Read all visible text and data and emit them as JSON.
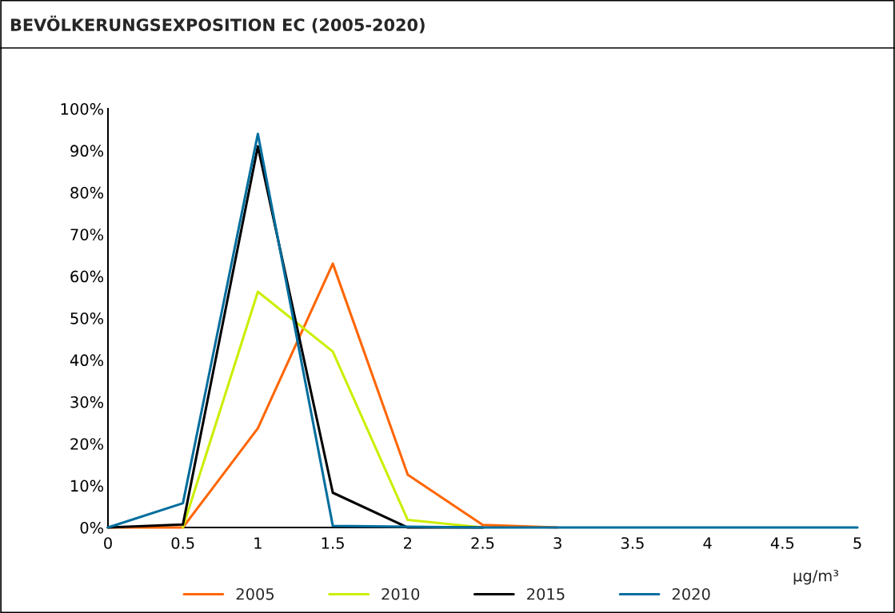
{
  "chart_data": {
    "type": "line",
    "title": "BEVÖLKERUNGSEXPOSITION EC (2005-2020)",
    "xlabel": "µg/m³",
    "x": [
      0,
      0.5,
      1,
      1.5,
      2,
      2.5,
      3,
      3.5,
      4,
      4.5,
      5
    ],
    "series": [
      {
        "name": "2005",
        "color": "#ff6600",
        "values": [
          0,
          0,
          23.7,
          63,
          12.6,
          0.6,
          0,
          null,
          null,
          null,
          null
        ]
      },
      {
        "name": "2010",
        "color": "#ccee00",
        "values": [
          null,
          0,
          56.3,
          42,
          1.8,
          0,
          null,
          null,
          null,
          null,
          null
        ]
      },
      {
        "name": "2015",
        "color": "#000000",
        "values": [
          0,
          0.7,
          91,
          8.3,
          0,
          0,
          null,
          null,
          null,
          null,
          null
        ]
      },
      {
        "name": "2020",
        "color": "#006e9e",
        "values": [
          0,
          5.8,
          94,
          0.4,
          0.2,
          0,
          0,
          0,
          0,
          0,
          0
        ]
      }
    ],
    "xlim": [
      0,
      5
    ],
    "xticks": [
      0,
      0.5,
      1,
      1.5,
      2,
      2.5,
      3,
      3.5,
      4,
      4.5,
      5
    ],
    "ylim": [
      0,
      100
    ],
    "yticks": [
      {
        "value": 0,
        "label": "0%"
      },
      {
        "value": 10,
        "label": "10%"
      },
      {
        "value": 20,
        "label": "20%"
      },
      {
        "value": 30,
        "label": "30%"
      },
      {
        "value": 40,
        "label": "40%"
      },
      {
        "value": 50,
        "label": "50%"
      },
      {
        "value": 60,
        "label": "60%"
      },
      {
        "value": 70,
        "label": "70%"
      },
      {
        "value": 80,
        "label": "80%"
      },
      {
        "value": 90,
        "label": "90%"
      },
      {
        "value": 100,
        "label": "100%"
      }
    ],
    "grid": false,
    "legend": "bottom",
    "marker": "none",
    "line_style": "solid"
  }
}
